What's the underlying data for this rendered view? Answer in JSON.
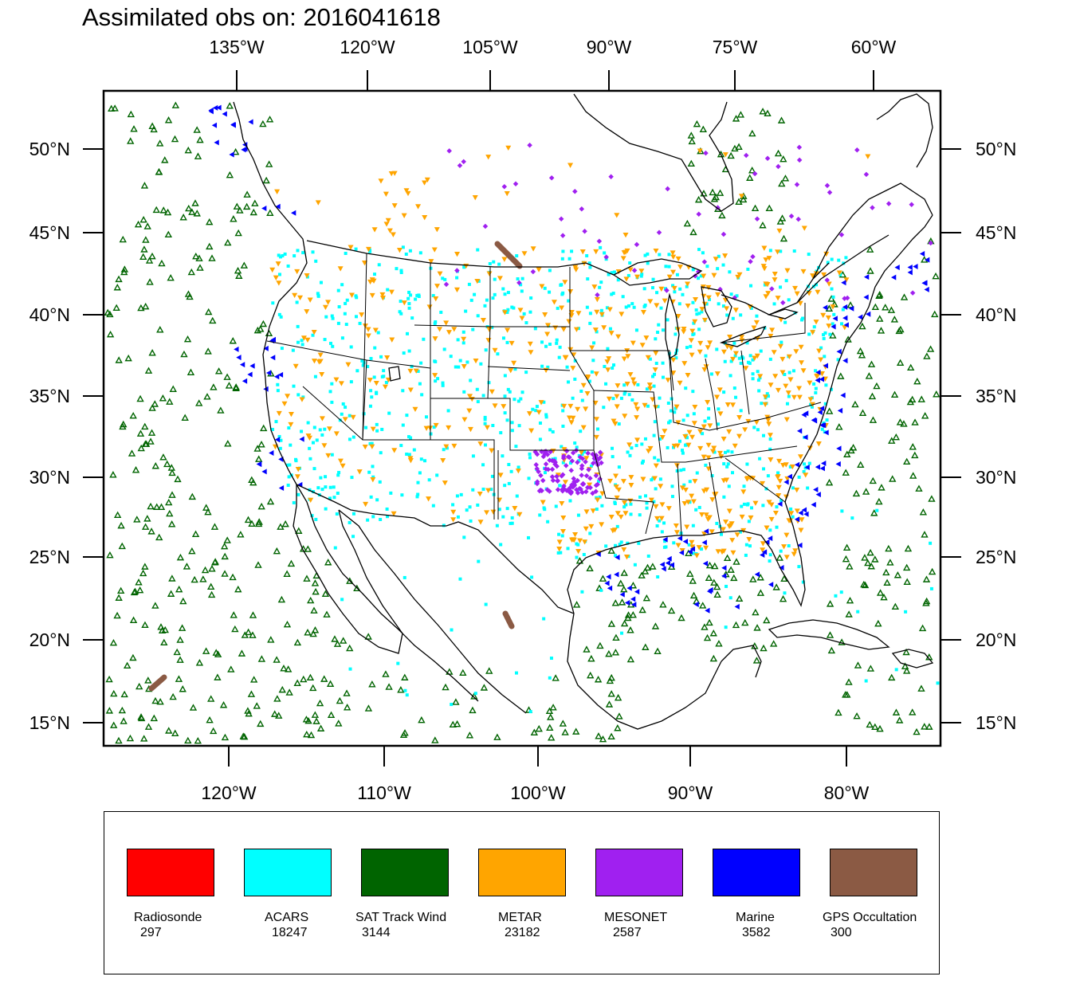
{
  "title": "Assimilated obs on: 2016041618",
  "axes": {
    "top_lon_labels": [
      "135°W",
      "120°W",
      "105°W",
      "90°W",
      "75°W",
      "60°W"
    ],
    "bottom_lon_labels": [
      "120°W",
      "110°W",
      "100°W",
      "90°W",
      "80°W"
    ],
    "left_lat_labels": [
      "50°N",
      "45°N",
      "40°N",
      "35°N",
      "30°N",
      "25°N",
      "20°N",
      "15°N"
    ],
    "right_lat_labels": [
      "50°N",
      "45°N",
      "40°N",
      "35°N",
      "30°N",
      "25°N",
      "20°N",
      "15°N"
    ]
  },
  "legend": [
    {
      "name": "Radiosonde",
      "count": "297",
      "color": "#ff0000"
    },
    {
      "name": "ACARS",
      "count": "18247",
      "color": "#00ffff"
    },
    {
      "name": "SAT Track Wind",
      "count": "3144",
      "color": "#006400"
    },
    {
      "name": "METAR",
      "count": "23182",
      "color": "#ffa500"
    },
    {
      "name": "MESONET",
      "count": "2587",
      "color": "#a020f0"
    },
    {
      "name": "Marine",
      "count": "3582",
      "color": "#0000ff"
    },
    {
      "name": "GPS Occultation",
      "count": "300",
      "color": "#8b5a44"
    }
  ],
  "chart_data": {
    "type": "scatter",
    "title": "Assimilated obs on: 2016041618",
    "xlabel": "",
    "ylabel": "",
    "lat_range": [
      14,
      53
    ],
    "lon_range": [
      -128,
      -73
    ],
    "series": [
      {
        "name": "Radiosonde",
        "count": 297,
        "color": "#ff0000",
        "marker": "none visible"
      },
      {
        "name": "ACARS",
        "count": 18247,
        "color": "#00ffff",
        "marker": "square"
      },
      {
        "name": "SAT Track Wind",
        "count": 3144,
        "color": "#006400",
        "marker": "triangle-up"
      },
      {
        "name": "METAR",
        "count": 23182,
        "color": "#ffa500",
        "marker": "triangle-down"
      },
      {
        "name": "MESONET",
        "count": 2587,
        "color": "#a020f0",
        "marker": "diamond"
      },
      {
        "name": "Marine",
        "count": 3582,
        "color": "#0000ff",
        "marker": "triangle-left"
      },
      {
        "name": "GPS Occultation",
        "count": 300,
        "color": "#8b5a44",
        "marker": "segment"
      }
    ]
  }
}
